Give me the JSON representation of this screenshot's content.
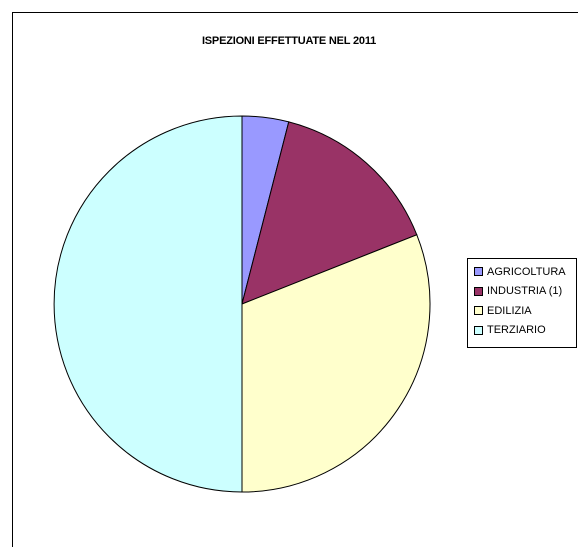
{
  "chart_data": {
    "type": "pie",
    "title": "ISPEZIONI EFFETTUATE NEL 2011",
    "categories": [
      "AGRICOLTURA",
      "INDUSTRIA (1)",
      "EDILIZIA",
      "TERZIARIO"
    ],
    "values": [
      4,
      15,
      31,
      50
    ],
    "colors": [
      "#9999ff",
      "#993366",
      "#ffffcc",
      "#ccffff"
    ],
    "start_angle_deg": 0,
    "direction": "clockwise",
    "legend_position": "right"
  }
}
